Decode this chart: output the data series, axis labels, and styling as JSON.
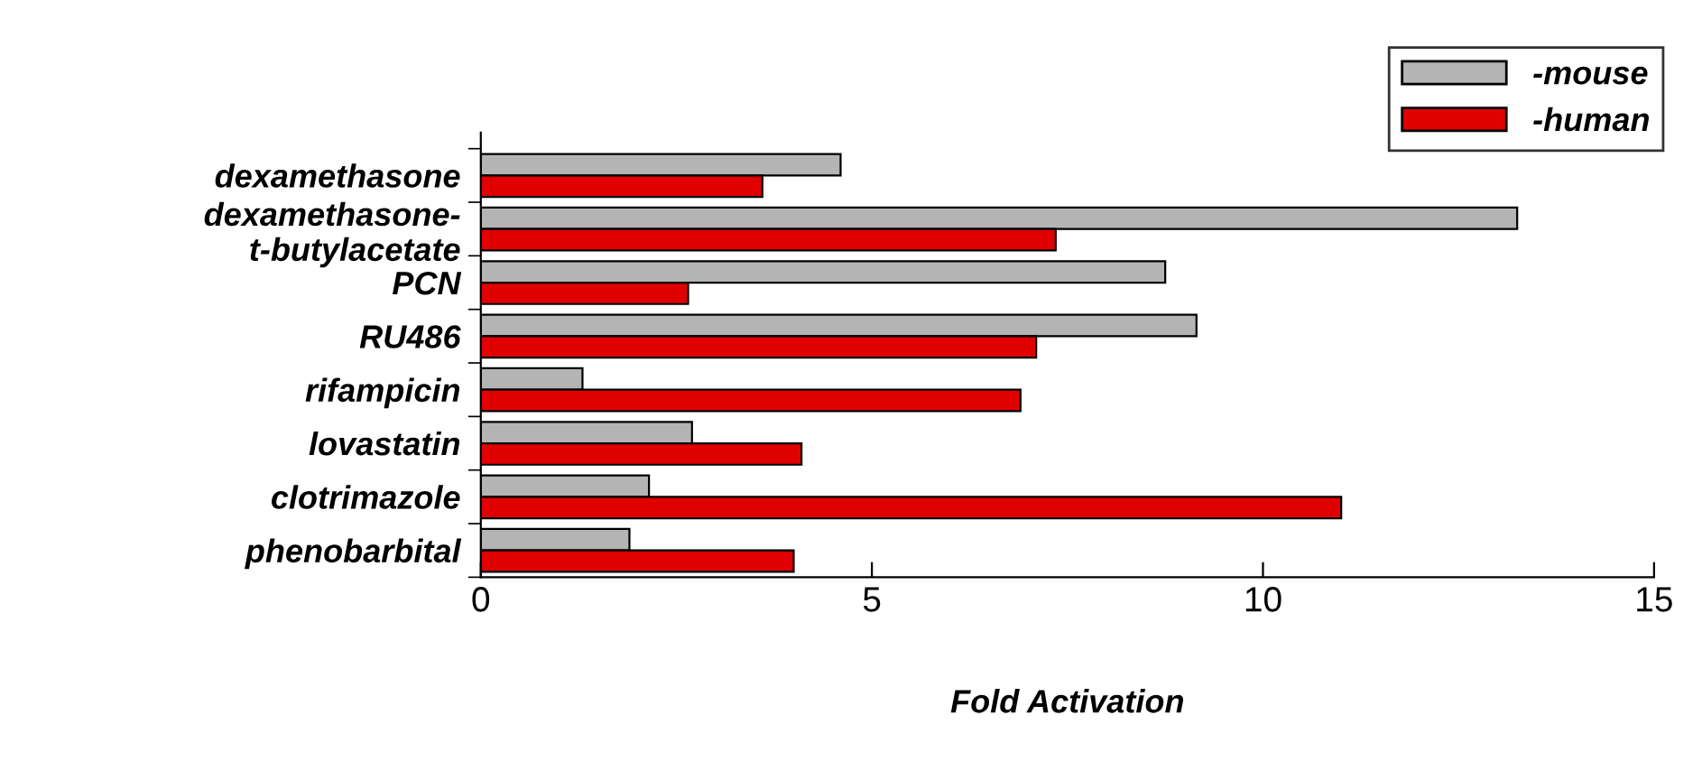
{
  "chart_data": {
    "type": "bar",
    "orientation": "horizontal",
    "xlabel": "Fold Activation",
    "categories": [
      "dexamethasone",
      "dexamethasone-\nt-butylacetate",
      "PCN",
      "RU486",
      "rifampicin",
      "lovastatin",
      "clotrimazole",
      "phenobarbital"
    ],
    "series": [
      {
        "name": "-mouse",
        "color": "#b4b4b4",
        "values": [
          4.6,
          13.25,
          8.75,
          9.15,
          1.3,
          2.7,
          2.15,
          1.9
        ]
      },
      {
        "name": "-human",
        "color": "#e00000",
        "values": [
          3.6,
          7.35,
          2.65,
          7.1,
          6.9,
          4.1,
          11.0,
          4.0
        ]
      }
    ],
    "xlim": [
      0,
      15
    ],
    "xticks": [
      0,
      5,
      10,
      15
    ],
    "grid": false,
    "legend": "top right"
  }
}
